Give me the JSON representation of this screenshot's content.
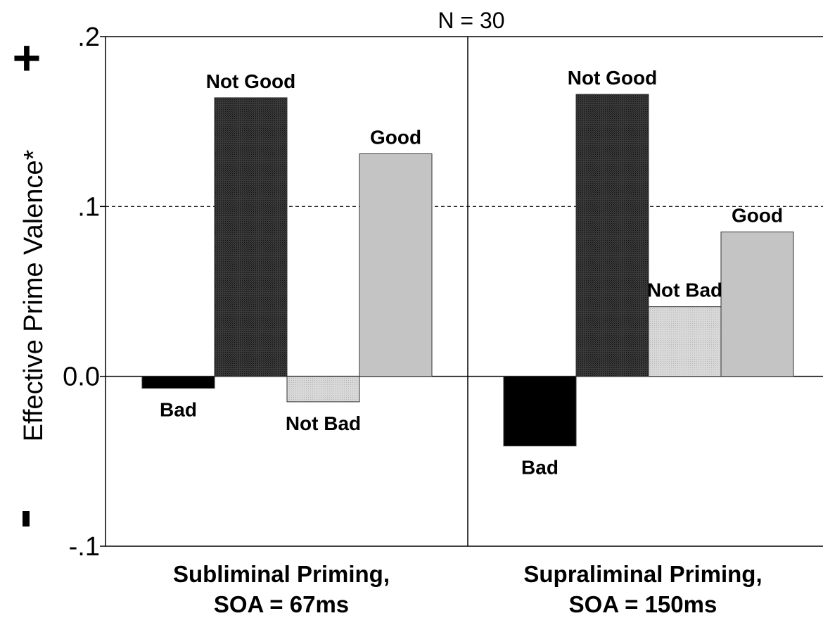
{
  "chart_data": {
    "type": "bar",
    "title": "N = 30",
    "ylabel": "Effective Prime Valence*",
    "ylim": [
      -0.1,
      0.2
    ],
    "yticks": [
      {
        "value": 0.2,
        "label": ".2"
      },
      {
        "value": 0.1,
        "label": ".1"
      },
      {
        "value": 0.0,
        "label": "0.0"
      },
      {
        "value": -0.1,
        "label": "-.1"
      }
    ],
    "reference_line": 0.1,
    "y_markers": {
      "positive": "+",
      "negative": "-"
    },
    "panels": [
      {
        "label_line1": "Subliminal Priming,",
        "label_line2": "SOA = 67ms",
        "bars": [
          {
            "label": "Bad",
            "value": -0.007
          },
          {
            "label": "Not Good",
            "value": 0.164
          },
          {
            "label": "Not Bad",
            "value": -0.015
          },
          {
            "label": "Good",
            "value": 0.131
          }
        ]
      },
      {
        "label_line1": "Supraliminal Priming,",
        "label_line2": "SOA = 150ms",
        "bars": [
          {
            "label": "Bad",
            "value": -0.041
          },
          {
            "label": "Not Good",
            "value": 0.166
          },
          {
            "label": "Not Bad",
            "value": 0.041
          },
          {
            "label": "Good",
            "value": 0.085
          }
        ]
      }
    ],
    "colors": {
      "Bad": "#000000",
      "Not Good": "#2a2a2a",
      "Not Bad": "#d4d4d4",
      "Good": "#c4c4c4"
    }
  }
}
